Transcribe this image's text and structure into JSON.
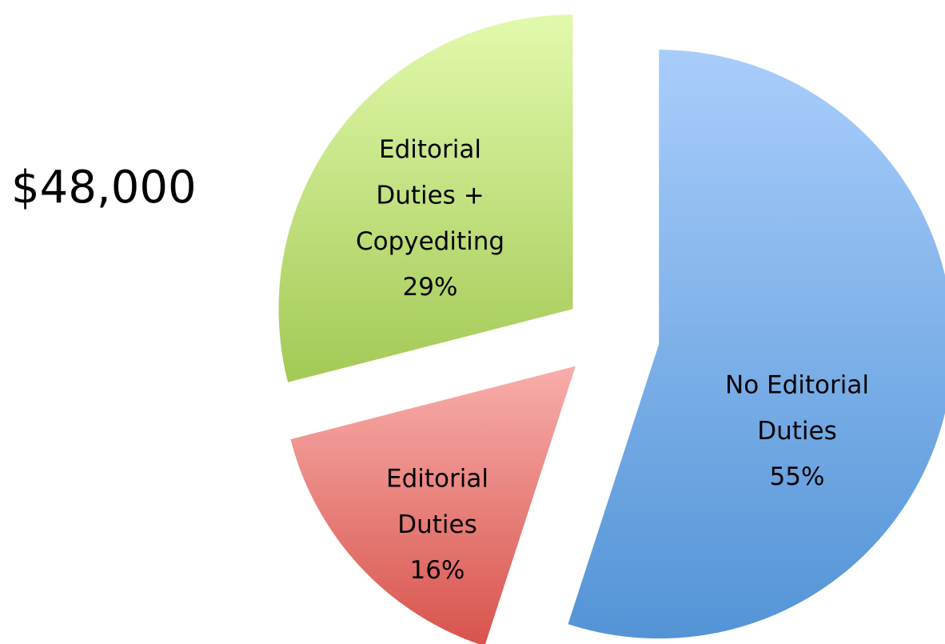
{
  "chart_data": {
    "type": "pie",
    "title": "$48,000",
    "categories": [
      "No Editorial Duties",
      "Editorial Duties",
      "Editorial Duties + Copyediting"
    ],
    "values": [
      55,
      16,
      29
    ],
    "value_labels": [
      "55%",
      "16%",
      "29%"
    ],
    "colors": [
      [
        "#a9cdfb",
        "#5394d6"
      ],
      [
        "#f8aeab",
        "#d8534c"
      ],
      [
        "#e2f9ac",
        "#a3c955"
      ]
    ]
  }
}
